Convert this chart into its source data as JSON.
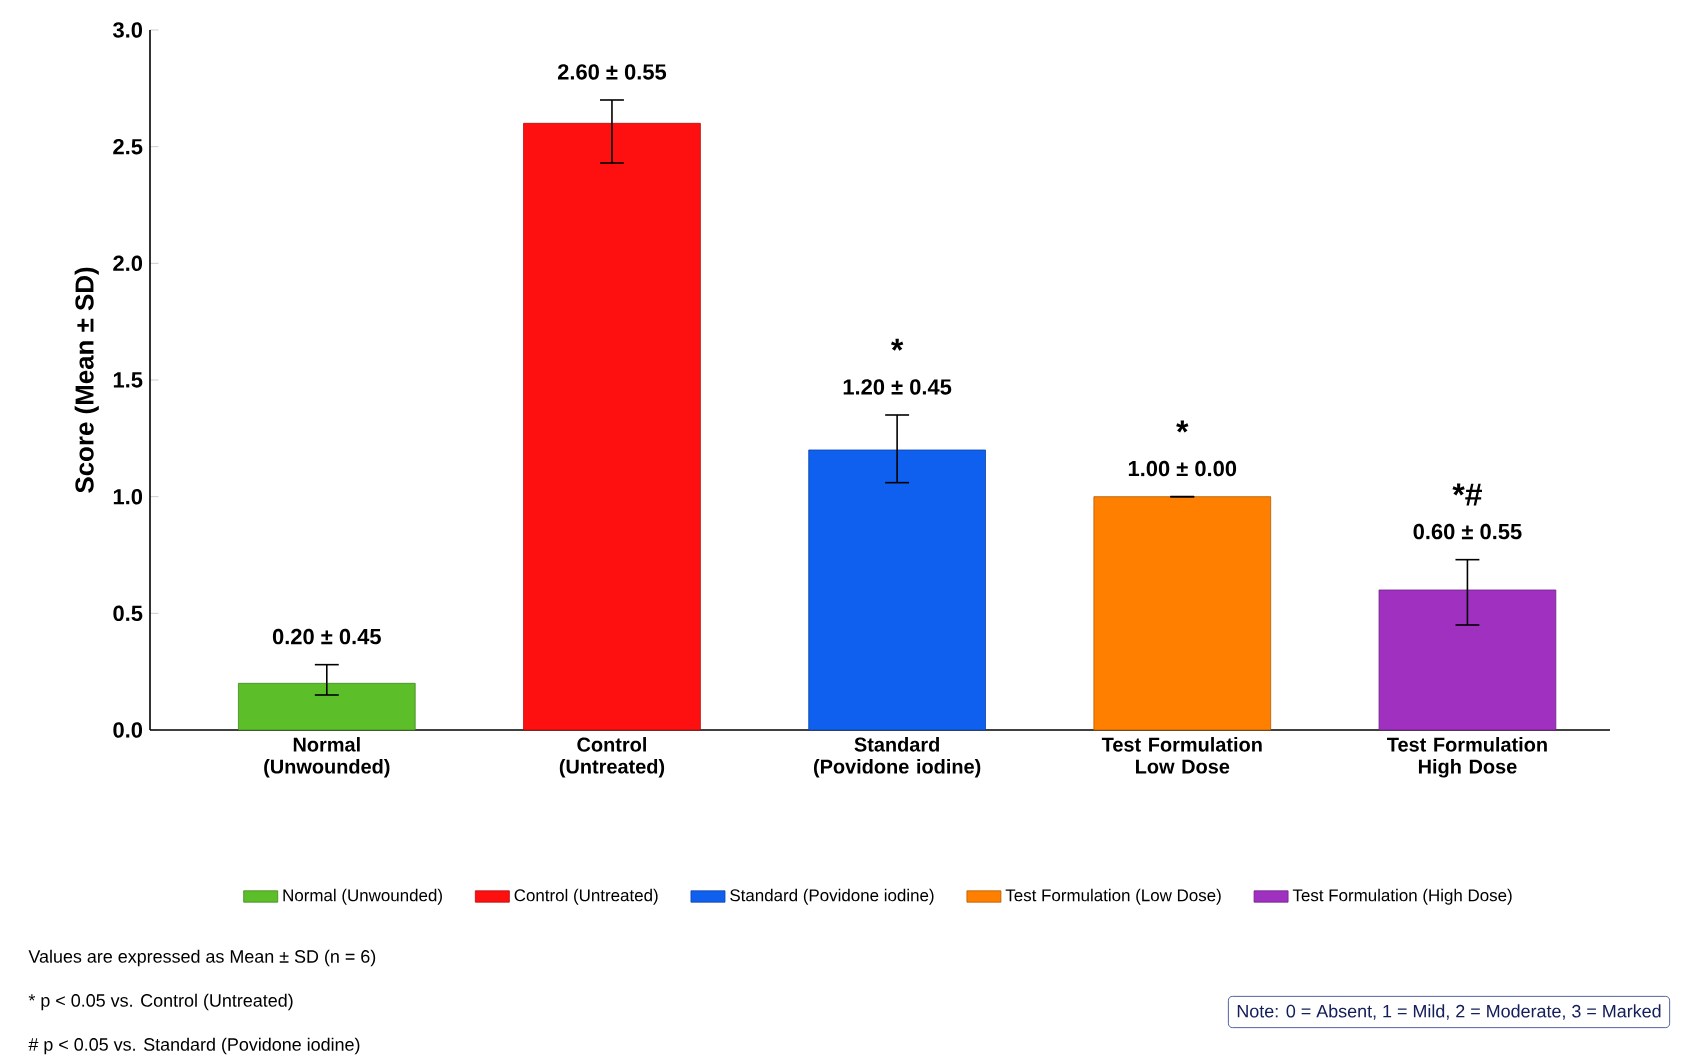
{
  "chart_data": {
    "type": "bar",
    "ylabel": "Score (Mean ± SD)",
    "categories": [
      "Normal (Unwounded)",
      "Control (Untreated)",
      "Standard (Povidone iodine)",
      "Test Formulation Low Dose",
      "Test Formulation High Dose"
    ],
    "series": [
      {
        "name": "Normal (Unwounded)",
        "color": "#5cbf2a",
        "values": [
          0.2,
          null,
          null,
          null,
          null
        ],
        "errors": [
          [
            0.15,
            0.28
          ],
          null,
          null,
          null,
          null
        ],
        "value_labels": [
          "0.20 ± 0.45",
          null,
          null,
          null,
          null
        ]
      },
      {
        "name": "Control (Untreated)",
        "color": "#ff1010",
        "values": [
          null,
          2.6,
          null,
          null,
          null
        ],
        "errors": [
          null,
          [
            2.43,
            2.7
          ],
          null,
          null,
          null
        ],
        "value_labels": [
          null,
          "2.60 ± 0.55",
          null,
          null,
          null
        ]
      },
      {
        "name": "Standard (Povidone iodine)",
        "color": "#1060f0",
        "values": [
          null,
          null,
          1.2,
          null,
          null
        ],
        "errors": [
          null,
          null,
          [
            1.06,
            1.35
          ],
          null,
          null
        ],
        "value_labels": [
          null,
          null,
          "1.20 ± 0.45",
          null,
          null
        ]
      },
      {
        "name": "Test Formulation (Low Dose)",
        "color": "#ff8000",
        "values": [
          null,
          null,
          null,
          1.0,
          null
        ],
        "errors": [
          null,
          null,
          null,
          null,
          null
        ],
        "value_labels": [
          null,
          null,
          null,
          "1.00 ± 0.00",
          null
        ]
      },
      {
        "name": "Test Formulation (High Dose)",
        "color": "#a030c0",
        "values": [
          null,
          null,
          null,
          null,
          0.6
        ],
        "errors": [
          null,
          null,
          null,
          null,
          [
            0.45,
            0.73
          ]
        ],
        "value_labels": [
          null,
          null,
          null,
          null,
          "0.60 ± 0.55"
        ]
      }
    ],
    "ylim": [
      0,
      3
    ],
    "yticks": [
      {
        "value": 0,
        "label": "0.0"
      },
      {
        "value": 0.5,
        "label": "0.5"
      },
      {
        "value": 1,
        "label": "1.0"
      },
      {
        "value": 1.5,
        "label": "1.5"
      },
      {
        "value": 2,
        "label": "2.0"
      },
      {
        "value": 2.5,
        "label": "2.5"
      },
      {
        "value": 3,
        "label": "3.0"
      }
    ],
    "legend": "bottom",
    "annotations": [
      {
        "text": "*",
        "x": "Standard (Povidone iodine)",
        "y": 1.35
      },
      {
        "text": "*",
        "x": "Test Formulation Low Dose",
        "y": 1.0
      },
      {
        "text": "*#",
        "x": "Test Formulation High Dose",
        "y": 0.73
      },
      "Values are expressed as Mean ± SD (n = 6)",
      "* p < 0.05 vs. Control (Untreated)",
      "# p < 0.05 vs. Standard (Povidone iodine)",
      "Note: 0 = Absent, 1 = Mild, 2 = Moderate, 3 = Marked"
    ]
  }
}
